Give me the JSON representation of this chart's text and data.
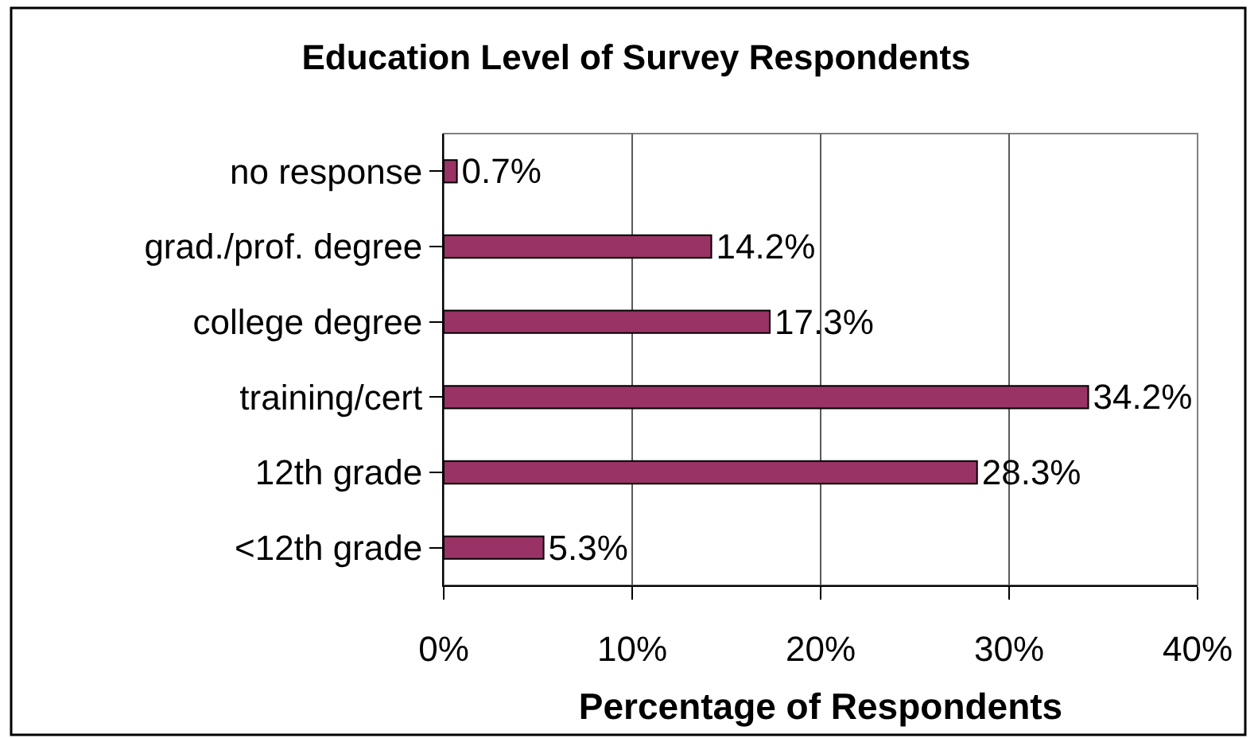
{
  "chart_data": {
    "type": "bar",
    "orientation": "horizontal",
    "title": "Education Level of Survey Respondents",
    "xlabel": "Percentage of Respondents",
    "categories": [
      "no response",
      "grad./prof. degree",
      "college degree",
      "training/cert",
      "12th grade",
      "<12th grade"
    ],
    "values": [
      0.7,
      14.2,
      17.3,
      34.2,
      28.3,
      5.3
    ],
    "value_labels": [
      "0.7%",
      "14.2%",
      "17.3%",
      "34.2%",
      "28.3%",
      "5.3%"
    ],
    "color": "#993366",
    "xlim": [
      0,
      40
    ],
    "xticks": [
      {
        "value": 0,
        "label": "0%"
      },
      {
        "value": 10,
        "label": "10%"
      },
      {
        "value": 20,
        "label": "20%"
      },
      {
        "value": 30,
        "label": "30%"
      },
      {
        "value": 40,
        "label": "40%"
      }
    ],
    "grid": "x"
  }
}
